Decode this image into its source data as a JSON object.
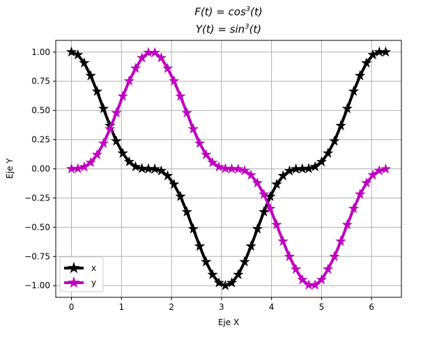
{
  "chart_data": {
    "type": "line",
    "title_lines": [
      {
        "base": "F(t) = cos",
        "sup": "3",
        "tail": "(t)"
      },
      {
        "base": "Y(t) = sin",
        "sup": "3",
        "tail": "(t)"
      }
    ],
    "xlabel": "Eje X",
    "ylabel": "Eje Y",
    "xlim": [
      -0.314,
      6.597
    ],
    "ylim": [
      -1.1,
      1.1
    ],
    "xticks": [
      0,
      1,
      2,
      3,
      4,
      5,
      6
    ],
    "xtick_labels": [
      "0",
      "1",
      "2",
      "3",
      "4",
      "5",
      "6"
    ],
    "yticks": [
      -1.0,
      -0.75,
      -0.5,
      -0.25,
      0.0,
      0.25,
      0.5,
      0.75,
      1.0
    ],
    "ytick_labels": [
      "−1.00",
      "−0.75",
      "−0.50",
      "−0.25",
      "0.00",
      "0.25",
      "0.50",
      "0.75",
      "1.00"
    ],
    "grid": true,
    "legend_position": "lower-left",
    "x": [
      0.0,
      0.128,
      0.256,
      0.385,
      0.513,
      0.641,
      0.769,
      0.898,
      1.026,
      1.154,
      1.282,
      1.41,
      1.539,
      1.667,
      1.795,
      1.923,
      2.051,
      2.18,
      2.308,
      2.436,
      2.564,
      2.692,
      2.821,
      2.949,
      3.077,
      3.205,
      3.334,
      3.462,
      3.59,
      3.718,
      3.847,
      3.975,
      4.103,
      4.231,
      4.36,
      4.488,
      4.616,
      4.744,
      4.872,
      5.001,
      5.129,
      5.257,
      5.385,
      5.514,
      5.642,
      5.77,
      5.898,
      6.027,
      6.155,
      6.283
    ],
    "series": [
      {
        "name": "x",
        "color": "#000000",
        "marker": "star",
        "values": [
          1.0,
          0.976,
          0.906,
          0.797,
          0.663,
          0.515,
          0.369,
          0.237,
          0.133,
          0.06,
          0.018,
          0.002,
          0.0,
          -0.002,
          -0.018,
          -0.06,
          -0.133,
          -0.237,
          -0.369,
          -0.515,
          -0.663,
          -0.797,
          -0.906,
          -0.976,
          -1.0,
          -0.976,
          -0.906,
          -0.797,
          -0.663,
          -0.515,
          -0.369,
          -0.237,
          -0.133,
          -0.06,
          -0.018,
          -0.002,
          0.0,
          0.002,
          0.018,
          0.06,
          0.133,
          0.237,
          0.369,
          0.515,
          0.663,
          0.797,
          0.906,
          0.976,
          1.0,
          1.0
        ]
      },
      {
        "name": "y",
        "color": "#bf00bf",
        "marker": "star",
        "values": [
          0.0,
          0.002,
          0.016,
          0.054,
          0.121,
          0.218,
          0.341,
          0.479,
          0.621,
          0.752,
          0.86,
          0.95,
          0.995,
          0.995,
          0.95,
          0.86,
          0.752,
          0.621,
          0.479,
          0.341,
          0.218,
          0.121,
          0.054,
          0.016,
          0.002,
          0.0,
          -0.002,
          -0.016,
          -0.054,
          -0.121,
          -0.218,
          -0.341,
          -0.479,
          -0.621,
          -0.752,
          -0.86,
          -0.95,
          -0.995,
          -0.995,
          -0.95,
          -0.86,
          -0.752,
          -0.621,
          -0.479,
          -0.341,
          -0.218,
          -0.121,
          -0.054,
          -0.016,
          -0.002
        ]
      }
    ]
  }
}
